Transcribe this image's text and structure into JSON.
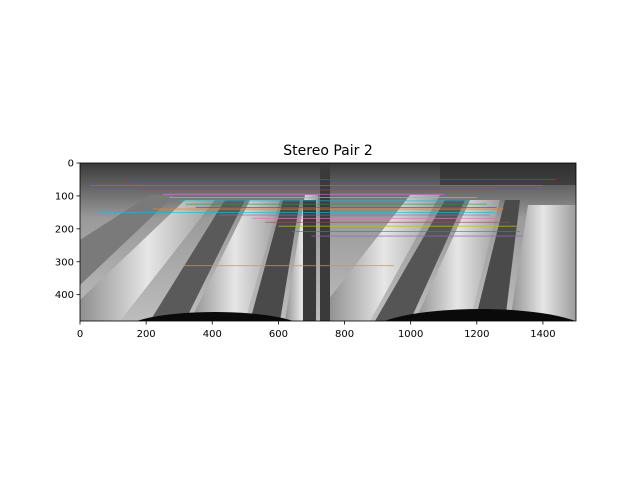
{
  "figure": {
    "title": "Stereo Pair 2"
  },
  "chart_data": {
    "type": "image",
    "title": "Stereo Pair 2",
    "xlabel": "",
    "ylabel": "",
    "xlim": [
      0,
      1500
    ],
    "ylim": [
      480,
      0
    ],
    "xticks": [
      0,
      200,
      400,
      600,
      800,
      1000,
      1200,
      1400
    ],
    "yticks": [
      0,
      100,
      200,
      300,
      400
    ],
    "image_pair_boundary_x": 750,
    "grid": false,
    "match_lines": [
      {
        "x1": 30,
        "y1": 68,
        "x2": 1400,
        "y2": 68,
        "color": "#9467bd"
      },
      {
        "x1": 140,
        "y1": 50,
        "x2": 1440,
        "y2": 50,
        "color": "#d62728"
      },
      {
        "x1": 180,
        "y1": 82,
        "x2": 1250,
        "y2": 82,
        "color": "#8c564b"
      },
      {
        "x1": 250,
        "y1": 95,
        "x2": 1100,
        "y2": 95,
        "color": "#e377c2"
      },
      {
        "x1": 270,
        "y1": 105,
        "x2": 1200,
        "y2": 105,
        "color": "#bcbd22"
      },
      {
        "x1": 300,
        "y1": 115,
        "x2": 1180,
        "y2": 115,
        "color": "#17becf"
      },
      {
        "x1": 320,
        "y1": 125,
        "x2": 1230,
        "y2": 125,
        "color": "#2ca02c"
      },
      {
        "x1": 350,
        "y1": 135,
        "x2": 1260,
        "y2": 135,
        "color": "#1f77b4"
      },
      {
        "x1": 220,
        "y1": 140,
        "x2": 1280,
        "y2": 140,
        "color": "#ff7f0e"
      },
      {
        "x1": 60,
        "y1": 150,
        "x2": 1250,
        "y2": 150,
        "color": "#17becf"
      },
      {
        "x1": 420,
        "y1": 158,
        "x2": 1240,
        "y2": 158,
        "color": "#9467bd"
      },
      {
        "x1": 520,
        "y1": 168,
        "x2": 1270,
        "y2": 168,
        "color": "#e377c2"
      },
      {
        "x1": 560,
        "y1": 180,
        "x2": 1300,
        "y2": 180,
        "color": "#8c564b"
      },
      {
        "x1": 600,
        "y1": 192,
        "x2": 1320,
        "y2": 192,
        "color": "#bcbd22"
      },
      {
        "x1": 640,
        "y1": 208,
        "x2": 1330,
        "y2": 208,
        "color": "#2ca02c"
      },
      {
        "x1": 700,
        "y1": 222,
        "x2": 1340,
        "y2": 222,
        "color": "#9467bd"
      },
      {
        "x1": 310,
        "y1": 312,
        "x2": 950,
        "y2": 312,
        "color": "#bc9a6a"
      }
    ]
  }
}
